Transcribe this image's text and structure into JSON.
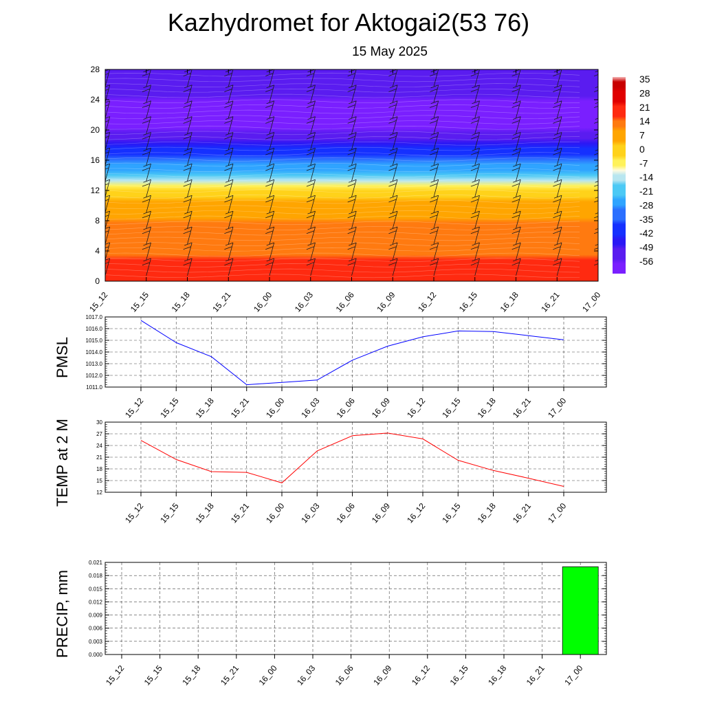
{
  "title": "Kazhydromet for Aktogai2(53 76)",
  "subtitle": "15 May 2025",
  "time_labels": [
    "15_12",
    "15_15",
    "15_18",
    "15_21",
    "16_00",
    "16_03",
    "16_06",
    "16_09",
    "16_12",
    "16_15",
    "16_18",
    "16_21",
    "17_00"
  ],
  "chart_data": [
    {
      "type": "heatmap",
      "title": "",
      "ylabel": "",
      "ylim": [
        0,
        28
      ],
      "yticks": [
        "0",
        "4",
        "8",
        "12",
        "16",
        "20",
        "24",
        "28"
      ],
      "colorbar_labels": [
        "35",
        "28",
        "21",
        "14",
        "7",
        "0",
        "-7",
        "-14",
        "-21",
        "-28",
        "-35",
        "-42",
        "-49",
        "-56"
      ],
      "colorbar_range": [
        -63,
        42
      ],
      "profile": [
        {
          "z": 0,
          "value": 22
        },
        {
          "z": 3,
          "value": 21
        },
        {
          "z": 6,
          "value": 19
        },
        {
          "z": 8,
          "value": 15
        },
        {
          "z": 10,
          "value": 9
        },
        {
          "z": 12,
          "value": 1
        },
        {
          "z": 13,
          "value": -10
        },
        {
          "z": 14,
          "value": -18
        },
        {
          "z": 16,
          "value": -30
        },
        {
          "z": 18,
          "value": -45
        },
        {
          "z": 20,
          "value": -56
        },
        {
          "z": 22,
          "value": -60
        },
        {
          "z": 24,
          "value": -56
        },
        {
          "z": 26,
          "value": -52
        },
        {
          "z": 28,
          "value": -50
        }
      ],
      "wind_barbs": true
    },
    {
      "type": "line",
      "ylabel": "PMSL",
      "ylim": [
        1011.0,
        1017.0
      ],
      "yticks": [
        "1011.0",
        "1012.0",
        "1013.0",
        "1014.0",
        "1015.0",
        "1016.0",
        "1017.0"
      ],
      "series": [
        {
          "color": "#0000ff",
          "values": [
            1016.7,
            1014.8,
            1013.6,
            1011.2,
            1011.4,
            1011.6,
            1013.3,
            1014.5,
            1015.3,
            1015.8,
            1015.75,
            1015.4,
            1015.05
          ]
        }
      ],
      "grid": true
    },
    {
      "type": "line",
      "ylabel": "TEMP at 2 M",
      "ylim": [
        12,
        30
      ],
      "yticks": [
        "12",
        "15",
        "18",
        "21",
        "24",
        "27",
        "30"
      ],
      "series": [
        {
          "color": "#ff0000",
          "values": [
            25.3,
            20.4,
            17.3,
            17.1,
            14.4,
            22.6,
            26.5,
            27.2,
            25.7,
            20.2,
            17.6,
            15.6,
            13.5
          ]
        }
      ],
      "grid": true
    },
    {
      "type": "bar",
      "ylabel": "PRECIP, mm",
      "ylim": [
        0,
        0.021
      ],
      "yticks": [
        "0.000",
        "0.003",
        "0.006",
        "0.009",
        "0.012",
        "0.015",
        "0.018",
        "0.021"
      ],
      "values": [
        0,
        0,
        0,
        0,
        0,
        0,
        0,
        0,
        0,
        0,
        0,
        0,
        0.02
      ],
      "bar_color": "#00ff00",
      "grid": true
    }
  ]
}
